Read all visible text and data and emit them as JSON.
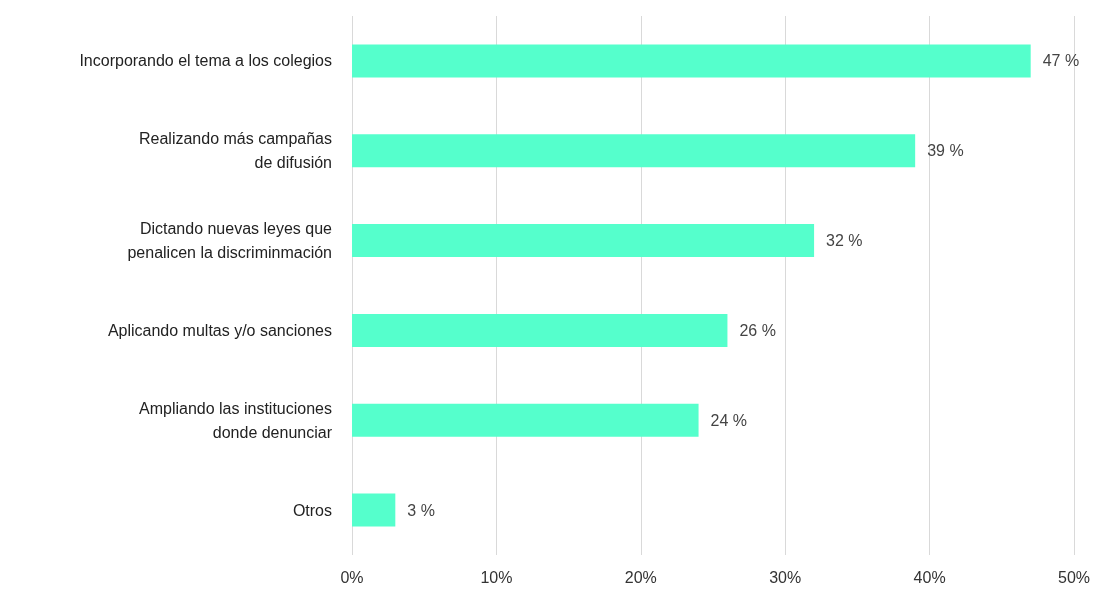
{
  "chart_data": {
    "type": "bar",
    "orientation": "horizontal",
    "categories": [
      "Incorporando el tema a los colegios",
      "Realizando más campañas\nde difusión",
      "Dictando nuevas leyes que\npenalicen la discriminmación",
      "Aplicando multas y/o sanciones",
      "Ampliando las instituciones\ndonde denunciar",
      "Otros"
    ],
    "values": [
      47,
      39,
      32,
      26,
      24,
      3
    ],
    "value_labels": [
      "47 %",
      "39 %",
      "32 %",
      "26 %",
      "24 %",
      "3 %"
    ],
    "color": "#55ffcc",
    "xlim": [
      0,
      50
    ],
    "xticks": [
      {
        "value": 0,
        "label": "0%"
      },
      {
        "value": 10,
        "label": "10%"
      },
      {
        "value": 20,
        "label": "20%"
      },
      {
        "value": 30,
        "label": "30%"
      },
      {
        "value": 40,
        "label": "40%"
      },
      {
        "value": 50,
        "label": "50%"
      }
    ],
    "grid": "x"
  }
}
